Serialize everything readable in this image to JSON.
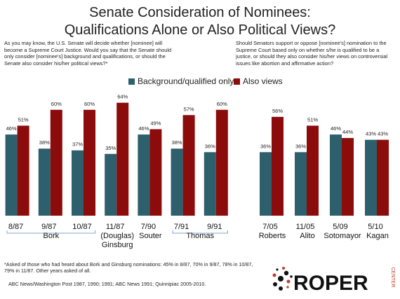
{
  "title": [
    "Senate Consideration of Nominees:",
    "Qualifications Alone or Also Political Views?"
  ],
  "legend_position": "top",
  "chart_data": [
    {
      "type": "bar",
      "question": "As you may know, the U.S. Senate will decide whether [nominee] will become a Supreme Court Justice. Would you say that the Senate should only consider [nominee's] background and qualifications, or should the Senate also consider his/her political views?*",
      "categories": [
        "8/87",
        "9/87",
        "10/87",
        "11/87",
        "7/90",
        "7/91",
        "9/91"
      ],
      "groups": [
        {
          "label": "Bork",
          "span": 3
        },
        {
          "label": "(Douglas) Ginsburg",
          "span": 1
        },
        {
          "label": "Souter",
          "span": 1
        },
        {
          "label": "Thomas",
          "span": 2
        }
      ],
      "series": [
        {
          "name": "Background/qualified only",
          "color": "#2d5f6c",
          "values": [
            46,
            38,
            37,
            35,
            46,
            38,
            36
          ],
          "value_labels": [
            "46%",
            "38%",
            "37%",
            "35%",
            "46%",
            "38%",
            "36%"
          ]
        },
        {
          "name": "Also views",
          "color": "#8c0b0b",
          "values": [
            51,
            60,
            60,
            64,
            49,
            57,
            60
          ],
          "value_labels": [
            "51%",
            "60%",
            "60%",
            "64%",
            "49%",
            "57%",
            "60%"
          ]
        }
      ]
    },
    {
      "type": "bar",
      "question": "Should Senators support or oppose [nominee's] nomination to the Supreme Court based only on whether s/he is qualified to be a justice, or should they also consider his/her views on controversial issues like abortion and affirmative action?",
      "categories": [
        "7/05",
        "11/05",
        "5/09",
        "5/10"
      ],
      "groups": [
        {
          "label": "Roberts",
          "span": 1
        },
        {
          "label": "Alito",
          "span": 1
        },
        {
          "label": "Sotomayor",
          "span": 1
        },
        {
          "label": "Kagan",
          "span": 1
        }
      ],
      "series": [
        {
          "color": "#2d5f6c",
          "values": [
            36,
            36,
            46,
            43
          ],
          "value_labels": [
            "36%",
            "36%",
            "46%",
            "43%"
          ]
        },
        {
          "color": "#8c0b0b",
          "values": [
            56,
            51,
            44,
            43
          ],
          "value_labels": [
            "56%",
            "51%",
            "44%",
            "43%"
          ]
        }
      ]
    }
  ],
  "footnote": "*Asked of those who had heard about Bork and Ginsburg nominations: 45% in 8/87, 70% in 9/87, 78% in 10/87, 79% in 11/87. Other years asked of all.",
  "source": "ABC News/Washington Post 1987, 1990; 1991; ABC News 1991; Quinnipiac 2005-2010.",
  "logo": {
    "name": "ROPER",
    "tag": "CENTER"
  }
}
